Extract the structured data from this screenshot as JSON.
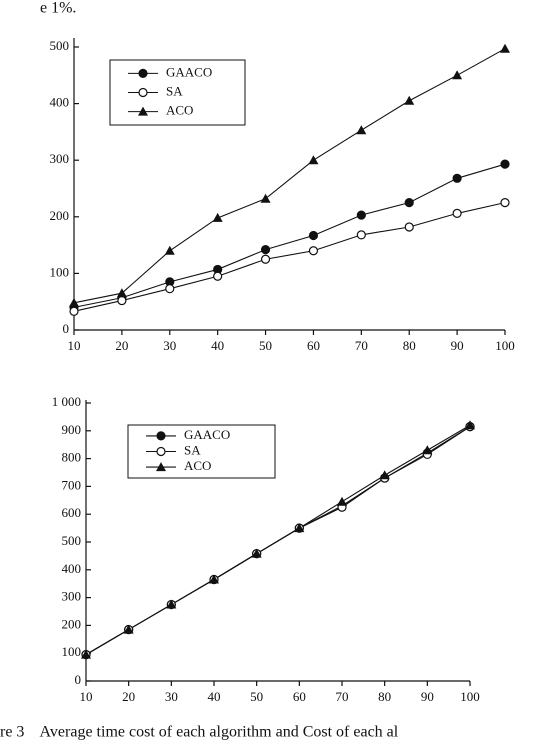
{
  "header_fragment": "e 1%.",
  "caption": "re 3    Average time cost of each algorithm and Cost of each al",
  "chart_data": [
    {
      "type": "line",
      "x": [
        10,
        20,
        30,
        40,
        50,
        60,
        70,
        80,
        90,
        100
      ],
      "xlim": [
        10,
        100
      ],
      "xticks": [
        10,
        20,
        30,
        40,
        50,
        60,
        70,
        80,
        90,
        100
      ],
      "ylim": [
        0,
        500
      ],
      "yticks": [
        0,
        100,
        200,
        300,
        400,
        500
      ],
      "legend": "upper left",
      "series": [
        {
          "name": "GAACO",
          "color": "#111111",
          "marker": "filled-circle",
          "values": [
            40,
            57,
            85,
            107,
            142,
            167,
            203,
            225,
            268,
            293
          ]
        },
        {
          "name": "SA",
          "color": "#111111",
          "marker": "open-circle",
          "values": [
            33,
            52,
            73,
            95,
            125,
            140,
            168,
            182,
            206,
            225
          ]
        },
        {
          "name": "ACO",
          "color": "#111111",
          "marker": "triangle",
          "values": [
            48,
            65,
            140,
            198,
            232,
            300,
            353,
            405,
            450,
            497
          ]
        }
      ]
    },
    {
      "type": "line",
      "x": [
        10,
        20,
        30,
        40,
        50,
        60,
        70,
        80,
        90,
        100
      ],
      "xlim": [
        10,
        100
      ],
      "xticks": [
        10,
        20,
        30,
        40,
        50,
        60,
        70,
        80,
        90,
        100
      ],
      "ylim": [
        0,
        1000
      ],
      "yticks": [
        0,
        100,
        200,
        300,
        400,
        500,
        600,
        700,
        800,
        900,
        {
          "value": 1000,
          "label": "1 000"
        }
      ],
      "legend": "upper left",
      "series": [
        {
          "name": "GAACO",
          "color": "#111111",
          "marker": "filled-circle",
          "values": [
            95,
            185,
            275,
            365,
            458,
            550,
            630,
            730,
            820,
            915
          ]
        },
        {
          "name": "SA",
          "color": "#111111",
          "marker": "open-circle",
          "values": [
            95,
            185,
            275,
            365,
            458,
            550,
            625,
            730,
            815,
            915
          ]
        },
        {
          "name": "ACO",
          "color": "#111111",
          "marker": "triangle",
          "values": [
            95,
            185,
            275,
            365,
            458,
            550,
            645,
            740,
            830,
            920
          ]
        }
      ]
    }
  ]
}
